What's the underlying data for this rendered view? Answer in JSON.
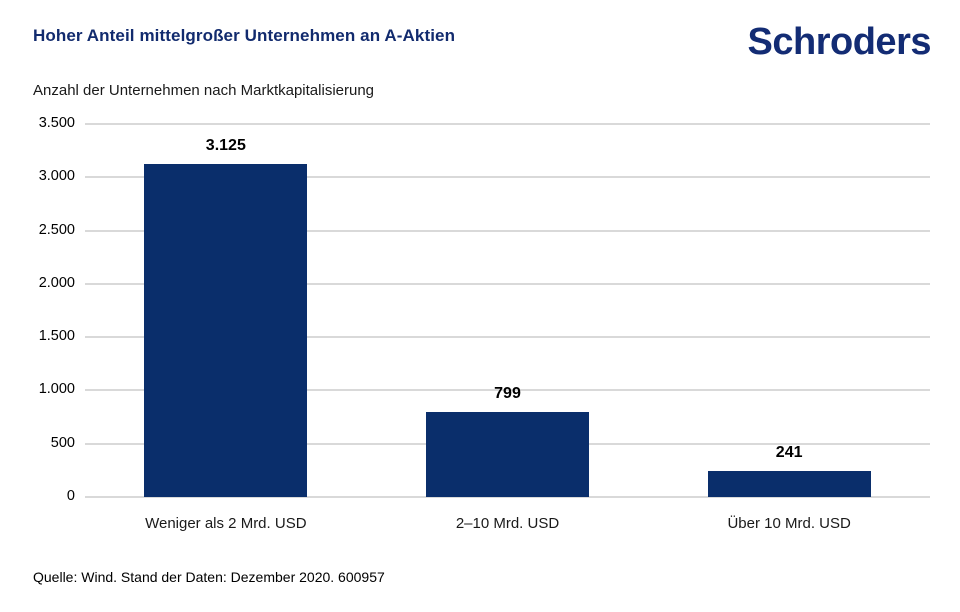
{
  "header": {
    "title": "Hoher Anteil mittelgroßer Unternehmen an A-Aktien",
    "logo_text": "Schroders"
  },
  "subtitle": "Anzahl der Unternehmen nach Marktkapitalisierung",
  "source": "Quelle: Wind. Stand der Daten: Dezember 2020. 600957",
  "colors": {
    "title_navy": "#122b6e",
    "logo_navy": "#132c74",
    "bar_fill": "#0a2e6b",
    "gridline": "#d9d9d9",
    "label_text": "#000000"
  },
  "chart_data": {
    "type": "bar",
    "title": "Hoher Anteil mittelgroßer Unternehmen an A-Aktien",
    "subtitle": "Anzahl der Unternehmen nach Marktkapitalisierung",
    "categories": [
      "Weniger als 2 Mrd. USD",
      "2–10 Mrd. USD",
      "Über 10 Mrd. USD"
    ],
    "values": [
      3125,
      799,
      241
    ],
    "value_labels": [
      "3.125",
      "799",
      "241"
    ],
    "xlabel": "",
    "ylabel": "",
    "ylim": [
      0,
      3500
    ],
    "ytick_step": 500,
    "ytick_labels": [
      "0",
      "500",
      "1.000",
      "1.500",
      "2.000",
      "2.500",
      "3.000",
      "3.500"
    ],
    "grid": true,
    "legend": "none",
    "source": "Quelle: Wind. Stand der Daten: Dezember 2020. 600957"
  }
}
